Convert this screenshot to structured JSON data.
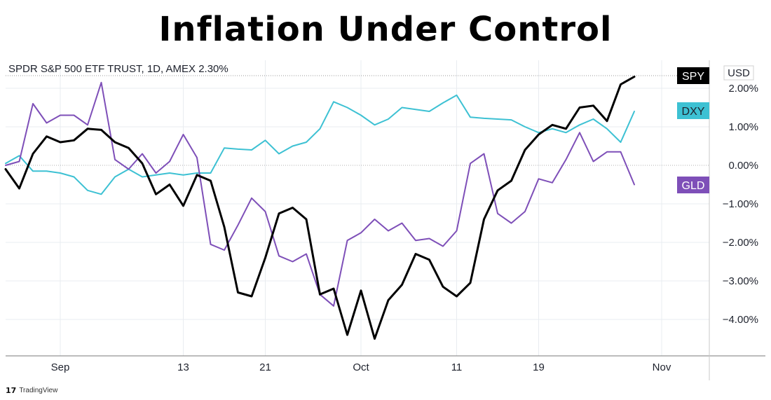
{
  "page_title": "Inflation Under Control",
  "chart_header": "SPDR S&P 500 ETF TRUST, 1D, AMEX  2.30%",
  "currency_label": "USD",
  "branding": {
    "mark": "17",
    "name": "TradingView"
  },
  "colors": {
    "SPY": "#000000",
    "DXY": "#3dc1d3",
    "GLD": "#7e4fb8",
    "zero_line": "#b0b0b0",
    "grid": "#e9ecf0"
  },
  "chart_data": {
    "type": "line",
    "title": "Inflation Under Control",
    "ylabel": "",
    "xlabel": "",
    "ylim": [
      -4.85,
      2.55
    ],
    "y_ticks": [
      2,
      1,
      0,
      -1,
      -2,
      -3,
      -4
    ],
    "y_tick_labels": [
      "2.00%",
      "1.00%",
      "0.00%",
      "−1.00%",
      "−2.00%",
      "−3.00%",
      "−4.00%"
    ],
    "x_ticks": [
      {
        "label": "Sep",
        "x": 4
      },
      {
        "label": "13",
        "x": 13
      },
      {
        "label": "21",
        "x": 19
      },
      {
        "label": "Oct",
        "x": 26
      },
      {
        "label": "11",
        "x": 33
      },
      {
        "label": "19",
        "x": 39
      },
      {
        "label": "Nov",
        "x": 48
      }
    ],
    "x": [
      0,
      1,
      2,
      3,
      4,
      5,
      6,
      7,
      8,
      9,
      10,
      11,
      12,
      13,
      14,
      15,
      16,
      17,
      18,
      19,
      20,
      21,
      22,
      23,
      24,
      25,
      26,
      27,
      28,
      29,
      30,
      31,
      32,
      33,
      34,
      35,
      36,
      37,
      38,
      39,
      40,
      41,
      42,
      43,
      44,
      45,
      46
    ],
    "series": [
      {
        "name": "SPY",
        "badge": "SPY",
        "values": [
          -0.1,
          -0.6,
          0.3,
          0.75,
          0.6,
          0.65,
          0.95,
          0.92,
          0.6,
          0.45,
          0.05,
          -0.75,
          -0.5,
          -1.05,
          -0.25,
          -0.4,
          -1.6,
          -3.3,
          -3.4,
          -2.4,
          -1.25,
          -1.1,
          -1.4,
          -3.35,
          -3.2,
          -4.4,
          -3.25,
          -4.5,
          -3.5,
          -3.1,
          -2.3,
          -2.45,
          -3.15,
          -3.4,
          -3.05,
          -1.4,
          -0.65,
          -0.4,
          0.4,
          0.8,
          1.05,
          0.95,
          1.5,
          1.55,
          1.15,
          2.1,
          2.3
        ]
      },
      {
        "name": "DXY",
        "badge": "DXY",
        "values": [
          0.05,
          0.25,
          -0.15,
          -0.15,
          -0.2,
          -0.3,
          -0.65,
          -0.75,
          -0.3,
          -0.1,
          -0.3,
          -0.25,
          -0.2,
          -0.25,
          -0.2,
          -0.2,
          0.45,
          0.42,
          0.4,
          0.65,
          0.3,
          0.5,
          0.6,
          0.95,
          1.65,
          1.5,
          1.3,
          1.05,
          1.2,
          1.5,
          1.45,
          1.4,
          1.62,
          1.82,
          1.25,
          1.22,
          1.2,
          1.18,
          1.0,
          0.85,
          0.95,
          0.85,
          1.05,
          1.2,
          0.95,
          0.6,
          1.4
        ]
      },
      {
        "name": "GLD",
        "badge": "GLD",
        "values": [
          0.0,
          0.1,
          1.6,
          1.1,
          1.3,
          1.3,
          1.05,
          2.15,
          0.15,
          -0.1,
          0.3,
          -0.2,
          0.1,
          0.8,
          0.2,
          -2.05,
          -2.2,
          -1.55,
          -0.85,
          -1.2,
          -2.35,
          -2.5,
          -2.3,
          -3.35,
          -3.65,
          -1.95,
          -1.75,
          -1.4,
          -1.7,
          -1.5,
          -1.95,
          -1.9,
          -2.1,
          -1.7,
          0.05,
          0.3,
          -1.25,
          -1.5,
          -1.2,
          -0.35,
          -0.45,
          0.15,
          0.85,
          0.1,
          0.35,
          0.35,
          -0.5
        ]
      }
    ],
    "grid": true,
    "legend": "right-axis badges"
  }
}
